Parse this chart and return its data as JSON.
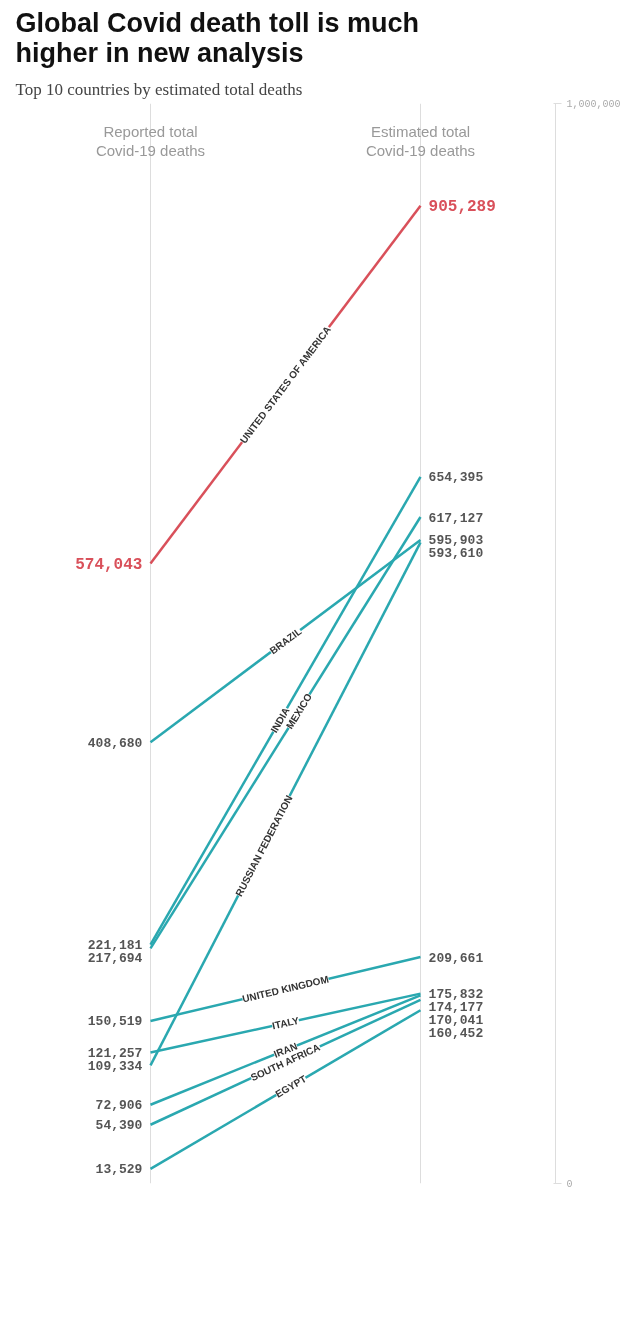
{
  "chart_data": {
    "type": "line",
    "title": "Global Covid death toll is much higher in new analysis",
    "subtitle": "Top 10 countries by estimated total deaths",
    "categories": [
      "Reported total Covid-19 deaths",
      "Estimated total Covid-19 deaths"
    ],
    "ylim": [
      0,
      1000000
    ],
    "yticks": [
      {
        "value": 0,
        "label": "0"
      },
      {
        "value": 1000000,
        "label": "1,000,000"
      }
    ],
    "grid": "x",
    "marker": "none",
    "line_style": "solid",
    "series": [
      {
        "name": "UNITED STATES OF AMERICA",
        "color": "#d9505a",
        "values": [
          574043,
          905289
        ],
        "value_labels": [
          "574,043",
          "905,289"
        ]
      },
      {
        "name": "BRAZIL",
        "color": "#2aa8b0",
        "values": [
          408680,
          595903
        ],
        "value_labels": [
          "408,680",
          "595,903"
        ]
      },
      {
        "name": "INDIA",
        "color": "#2aa8b0",
        "values": [
          221181,
          654395
        ],
        "value_labels": [
          "221,181",
          "654,395"
        ]
      },
      {
        "name": "MEXICO",
        "color": "#2aa8b0",
        "values": [
          217694,
          617127
        ],
        "value_labels": [
          "217,694",
          "617,127"
        ]
      },
      {
        "name": "RUSSIAN FEDERATION",
        "color": "#2aa8b0",
        "values": [
          109334,
          593610
        ],
        "value_labels": [
          "109,334",
          "593,610"
        ]
      },
      {
        "name": "UNITED KINGDOM",
        "color": "#2aa8b0",
        "values": [
          150519,
          209661
        ],
        "value_labels": [
          "150,519",
          "209,661"
        ]
      },
      {
        "name": "ITALY",
        "color": "#2aa8b0",
        "values": [
          121257,
          175832
        ],
        "value_labels": [
          "121,257",
          "175,832"
        ]
      },
      {
        "name": "IRAN",
        "color": "#2aa8b0",
        "values": [
          72906,
          174177
        ],
        "value_labels": [
          "72,906",
          "174,177"
        ]
      },
      {
        "name": "SOUTH AFRICA",
        "color": "#2aa8b0",
        "values": [
          54390,
          170041
        ],
        "value_labels": [
          "54,390",
          "170,041"
        ]
      },
      {
        "name": "EGYPT",
        "color": "#2aa8b0",
        "values": [
          13529,
          160452
        ],
        "value_labels": [
          "13,529",
          "160,452"
        ]
      }
    ]
  }
}
